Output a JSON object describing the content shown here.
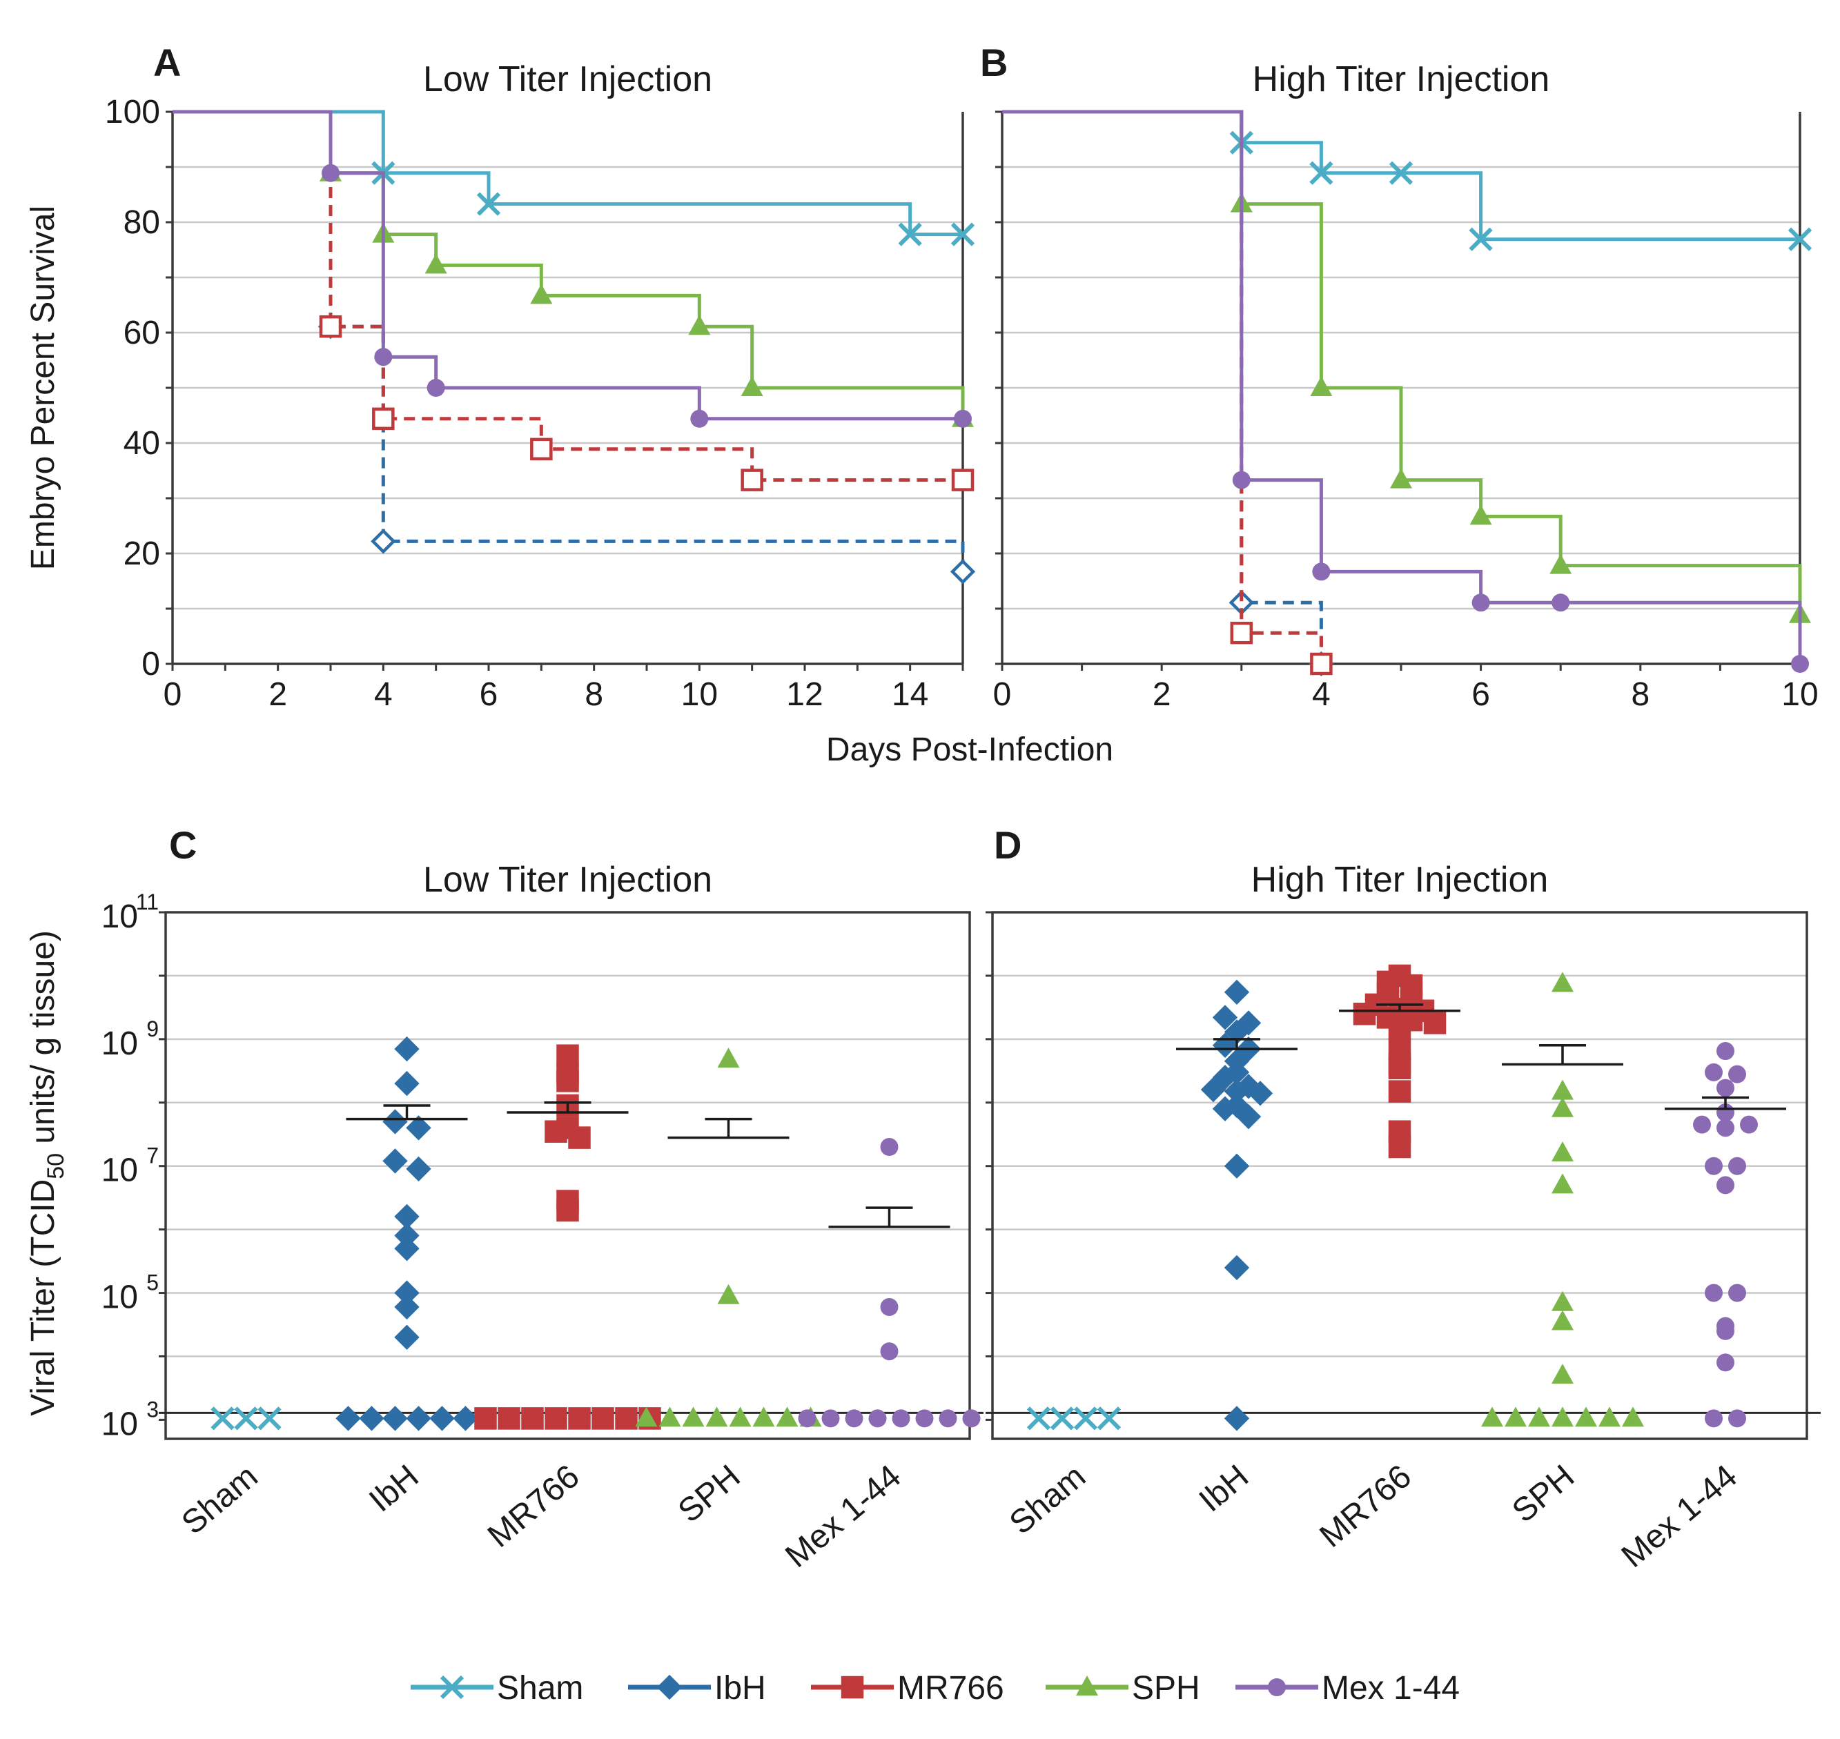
{
  "colors": {
    "Sham": "#4bacc6",
    "IbH": "#2e6ea6",
    "MR766": "#c0393b",
    "SPH": "#7ab648",
    "Mex 1-44": "#8a6bb3"
  },
  "common": {
    "xlabel_survival": "Days Post-Infection",
    "ylabel_survival": "Embryo Percent Survival",
    "ylabel_titer_prefix": "Viral Titer (TCID",
    "ylabel_titer_sub": "50",
    "ylabel_titer_suffix": " units/ g tissue)"
  },
  "legend": [
    "Sham",
    "IbH",
    "MR766",
    "SPH",
    "Mex 1-44"
  ],
  "chart_data": [
    {
      "panel": "A",
      "type": "line",
      "title": "Low Titer Injection",
      "xlabel": "Days Post-Infection",
      "ylabel": "Embryo Percent Survival",
      "xlim": [
        0,
        15
      ],
      "ylim": [
        0,
        100
      ],
      "xticks": [
        0,
        2,
        4,
        6,
        8,
        10,
        12,
        14
      ],
      "yticks": [
        0,
        20,
        40,
        60,
        80,
        100
      ],
      "series": [
        {
          "name": "Sham",
          "dashed": false,
          "steps": [
            [
              0,
              100
            ],
            [
              4,
              88.9
            ],
            [
              6,
              83.3
            ],
            [
              14,
              77.8
            ],
            [
              15,
              77.8
            ]
          ],
          "markers": [
            [
              4,
              88.9
            ],
            [
              6,
              83.3
            ],
            [
              14,
              77.8
            ],
            [
              15,
              77.8
            ]
          ]
        },
        {
          "name": "IbH",
          "dashed": true,
          "steps": [
            [
              0,
              100
            ],
            [
              3,
              61.1
            ],
            [
              4,
              22.2
            ],
            [
              15,
              16.7
            ]
          ],
          "markers": [
            [
              3,
              61.1
            ],
            [
              4,
              22.2
            ],
            [
              15,
              16.7
            ]
          ]
        },
        {
          "name": "MR766",
          "dashed": true,
          "steps": [
            [
              0,
              100
            ],
            [
              3,
              61.1
            ],
            [
              4,
              44.4
            ],
            [
              7,
              38.9
            ],
            [
              11,
              33.3
            ],
            [
              15,
              33.3
            ]
          ],
          "markers": [
            [
              3,
              61.1
            ],
            [
              4,
              44.4
            ],
            [
              7,
              38.9
            ],
            [
              11,
              33.3
            ],
            [
              15,
              33.3
            ]
          ]
        },
        {
          "name": "SPH",
          "dashed": false,
          "steps": [
            [
              0,
              100
            ],
            [
              3,
              88.9
            ],
            [
              4,
              77.8
            ],
            [
              5,
              72.2
            ],
            [
              7,
              66.7
            ],
            [
              10,
              61.1
            ],
            [
              11,
              50
            ],
            [
              15,
              44.4
            ]
          ],
          "markers": [
            [
              3,
              88.9
            ],
            [
              4,
              77.8
            ],
            [
              5,
              72.2
            ],
            [
              7,
              66.7
            ],
            [
              10,
              61.1
            ],
            [
              11,
              50
            ],
            [
              15,
              44.4
            ]
          ]
        },
        {
          "name": "Mex 1-44",
          "dashed": false,
          "steps": [
            [
              0,
              100
            ],
            [
              3,
              88.9
            ],
            [
              4,
              55.6
            ],
            [
              5,
              50
            ],
            [
              10,
              44.4
            ],
            [
              15,
              44.4
            ]
          ],
          "markers": [
            [
              3,
              88.9
            ],
            [
              4,
              55.6
            ],
            [
              5,
              50
            ],
            [
              10,
              44.4
            ],
            [
              15,
              44.4
            ]
          ]
        }
      ]
    },
    {
      "panel": "B",
      "type": "line",
      "title": "High Titer Injection",
      "xlabel": "Days Post-Infection",
      "ylabel": "Embryo Percent Survival",
      "xlim": [
        0,
        10
      ],
      "ylim": [
        0,
        100
      ],
      "xticks": [
        0,
        2,
        4,
        6,
        8,
        10
      ],
      "yticks": [
        0,
        20,
        40,
        60,
        80,
        100
      ],
      "series": [
        {
          "name": "Sham",
          "dashed": false,
          "steps": [
            [
              0,
              100
            ],
            [
              3,
              94.4
            ],
            [
              4,
              88.9
            ],
            [
              6,
              76.9
            ],
            [
              10,
              76.9
            ]
          ],
          "markers": [
            [
              3,
              94.4
            ],
            [
              4,
              88.9
            ],
            [
              5,
              88.9
            ],
            [
              6,
              76.9
            ],
            [
              10,
              76.9
            ]
          ]
        },
        {
          "name": "IbH",
          "dashed": true,
          "steps": [
            [
              0,
              100
            ],
            [
              3,
              11.1
            ],
            [
              4,
              0
            ]
          ],
          "markers": [
            [
              3,
              11.1
            ],
            [
              4,
              0
            ]
          ]
        },
        {
          "name": "MR766",
          "dashed": true,
          "steps": [
            [
              0,
              100
            ],
            [
              3,
              5.6
            ],
            [
              4,
              0
            ]
          ],
          "markers": [
            [
              3,
              5.6
            ],
            [
              4,
              0
            ]
          ]
        },
        {
          "name": "SPH",
          "dashed": false,
          "steps": [
            [
              0,
              100
            ],
            [
              3,
              83.3
            ],
            [
              4,
              50
            ],
            [
              5,
              33.3
            ],
            [
              6,
              26.7
            ],
            [
              7,
              17.8
            ],
            [
              10,
              8.9
            ]
          ],
          "markers": [
            [
              3,
              83.3
            ],
            [
              4,
              50
            ],
            [
              5,
              33.3
            ],
            [
              6,
              26.7
            ],
            [
              7,
              17.8
            ],
            [
              10,
              8.9
            ]
          ]
        },
        {
          "name": "Mex 1-44",
          "dashed": false,
          "steps": [
            [
              0,
              100
            ],
            [
              3,
              33.3
            ],
            [
              4,
              16.7
            ],
            [
              6,
              11.1
            ],
            [
              10,
              0
            ]
          ],
          "markers": [
            [
              3,
              33.3
            ],
            [
              4,
              16.7
            ],
            [
              6,
              11.1
            ],
            [
              7,
              11.1
            ],
            [
              10,
              0
            ]
          ]
        }
      ]
    },
    {
      "panel": "C",
      "type": "scatter",
      "title": "Low Titer Injection",
      "ylabel": "Viral Titer (TCID50 units/ g tissue)",
      "yscale": "log",
      "ylim_exp": [
        2.7,
        11
      ],
      "detection_limit": 1000,
      "yticks": [
        "10",
        "10",
        "10",
        "10",
        "10"
      ],
      "ytick_exponents": [
        "3",
        "5",
        "7",
        "9",
        "11"
      ],
      "categories": [
        "Sham",
        "IbH",
        "MR766",
        "SPH",
        "Mex 1-44"
      ],
      "groups": [
        {
          "name": "Sham",
          "values": [
            1000,
            1000,
            1000
          ],
          "mean": null,
          "sem_upper": null
        },
        {
          "name": "IbH",
          "values": [
            700000000,
            200000000,
            50000000,
            40000000,
            12000000,
            9000000,
            1600000,
            800000,
            500000,
            100000,
            60000,
            20000,
            1000,
            1000,
            1000,
            1000,
            1000,
            1000
          ],
          "mean": 55000000,
          "sem_upper": 90000000
        },
        {
          "name": "MR766",
          "values": [
            550000000,
            280000000,
            220000000,
            90000000,
            40000000,
            35000000,
            28000000,
            2800000,
            2000000,
            1000,
            1000,
            1000,
            1000,
            1000,
            1000,
            1000,
            1000
          ],
          "mean": 70000000,
          "sem_upper": 100000000
        },
        {
          "name": "SPH",
          "values": [
            480000000,
            90000,
            1000,
            1000,
            1000,
            1000,
            1000,
            1000,
            1000,
            1000
          ],
          "mean": 28000000,
          "sem_upper": 55000000
        },
        {
          "name": "Mex 1-44",
          "values": [
            20000000,
            60000,
            12000,
            1000,
            1000,
            1000,
            1000,
            1000,
            1000,
            1000,
            1000
          ],
          "mean": 1100000,
          "sem_upper": 2200000
        }
      ]
    },
    {
      "panel": "D",
      "type": "scatter",
      "title": "High Titer Injection",
      "yscale": "log",
      "ylim_exp": [
        2.7,
        11
      ],
      "detection_limit": 1000,
      "categories": [
        "Sham",
        "IbH",
        "MR766",
        "SPH",
        "Mex 1-44"
      ],
      "groups": [
        {
          "name": "Sham",
          "values": [
            1000,
            1000,
            1000,
            1000
          ],
          "mean": null,
          "sem_upper": null
        },
        {
          "name": "IbH",
          "values": [
            5500000000,
            2200000000,
            1800000000,
            1300000000,
            800000000,
            700000000,
            450000000,
            300000000,
            250000000,
            180000000,
            160000000,
            150000000,
            140000000,
            90000000,
            80000000,
            60000000,
            10000000,
            250000,
            1000
          ],
          "mean": 700000000,
          "sem_upper": 1000000000
        },
        {
          "name": "MR766",
          "values": [
            10000000000,
            8000000000,
            7000000000,
            5500000000,
            4000000000,
            3500000000,
            3000000000,
            2800000000,
            2500000000,
            2200000000,
            2000000000,
            1800000000,
            1500000000,
            700000000,
            400000000,
            350000000,
            150000000,
            35000000,
            20000000
          ],
          "mean": 2800000000,
          "sem_upper": 3500000000
        },
        {
          "name": "SPH",
          "values": [
            7500000000,
            150000000,
            80000000,
            16000000,
            5000000,
            70000,
            35000,
            5000,
            1000,
            1000,
            1000,
            1000,
            1000,
            1000,
            1000
          ],
          "mean": 400000000,
          "sem_upper": 800000000
        },
        {
          "name": "Mex 1-44",
          "values": [
            650000000,
            300000000,
            280000000,
            170000000,
            70000000,
            45000000,
            40000000,
            45000000,
            10000000,
            10000000,
            5000000,
            100000,
            100000,
            30000,
            25000,
            8000,
            1000,
            1000
          ],
          "mean": 80000000,
          "sem_upper": 120000000
        }
      ]
    }
  ]
}
